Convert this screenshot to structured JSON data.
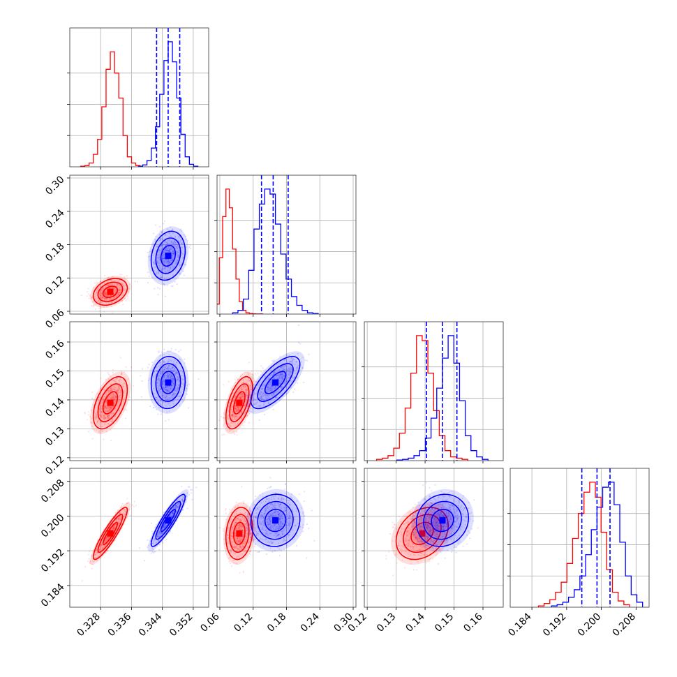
{
  "chart_data": {
    "type": "corner",
    "title": "",
    "grid": true,
    "parameters": [
      {
        "index": 0,
        "range": [
          0.32,
          0.356
        ],
        "ticks": [
          "0.328",
          "0.336",
          "0.344",
          "0.352"
        ],
        "tick_values": [
          0.328,
          0.336,
          0.344,
          0.352
        ]
      },
      {
        "index": 1,
        "range": [
          0.055,
          0.305
        ],
        "ticks": [
          "0.06",
          "0.12",
          "0.18",
          "0.24",
          "0.30"
        ],
        "tick_values": [
          0.06,
          0.12,
          0.18,
          0.24,
          0.3
        ]
      },
      {
        "index": 2,
        "range": [
          0.119,
          0.167
        ],
        "ticks": [
          "0.12",
          "0.13",
          "0.14",
          "0.15",
          "0.16"
        ],
        "tick_values": [
          0.12,
          0.13,
          0.14,
          0.15,
          0.16
        ]
      },
      {
        "index": 3,
        "range": [
          0.179,
          0.211
        ],
        "ticks": [
          "0.184",
          "0.192",
          "0.200",
          "0.208"
        ],
        "tick_values": [
          0.184,
          0.192,
          0.2,
          0.208
        ]
      }
    ],
    "series": [
      {
        "name": "red",
        "color": "#ff0000",
        "mean": [
          0.3305,
          0.095,
          0.139,
          0.196
        ],
        "sd": [
          0.0022,
          0.012,
          0.0045,
          0.003
        ],
        "corr": [
          [
            0,
            1,
            0.3
          ],
          [
            0,
            2,
            0.5
          ],
          [
            0,
            3,
            0.9
          ],
          [
            1,
            2,
            0.55
          ],
          [
            1,
            3,
            0.15
          ],
          [
            2,
            3,
            0.3
          ]
        ],
        "hist": [
          [
            0.5,
            1,
            3,
            10,
            22,
            48,
            78,
            92,
            75,
            55,
            25,
            8,
            3,
            1
          ],
          [
            8,
            45,
            78,
            100,
            85,
            52,
            28,
            10,
            3,
            1,
            0.5,
            0.2,
            0.1,
            0.1
          ],
          [
            1,
            2,
            4,
            10,
            22,
            42,
            70,
            100,
            96,
            70,
            40,
            20,
            8,
            3,
            2,
            1
          ],
          [
            1,
            3,
            6,
            12,
            20,
            35,
            55,
            75,
            92,
            100,
            88,
            60,
            30,
            12,
            5,
            2
          ]
        ]
      },
      {
        "name": "blue",
        "color": "#0000ff",
        "mean": [
          0.3455,
          0.16,
          0.146,
          0.199
        ],
        "sd": [
          0.0022,
          0.022,
          0.0045,
          0.003
        ],
        "corr": [
          [
            0,
            1,
            0.2
          ],
          [
            0,
            2,
            0.05
          ],
          [
            0,
            3,
            0.9
          ],
          [
            1,
            2,
            0.7
          ],
          [
            1,
            3,
            0.05
          ],
          [
            2,
            3,
            0.1
          ]
        ],
        "hist": [
          [
            0.5,
            1.5,
            5,
            15,
            32,
            58,
            85,
            100,
            84,
            55,
            26,
            8,
            2,
            0.5
          ],
          [
            1,
            3,
            12,
            35,
            68,
            88,
            100,
            96,
            72,
            48,
            28,
            14,
            7,
            3,
            1,
            0.5
          ],
          [
            0.5,
            1,
            2,
            4,
            8,
            18,
            34,
            58,
            82,
            100,
            78,
            48,
            20,
            8,
            3,
            1
          ],
          [
            1,
            2,
            4,
            8,
            14,
            25,
            42,
            62,
            80,
            96,
            100,
            82,
            52,
            25,
            10,
            4
          ]
        ],
        "quantiles": [
          [
            0.3425,
            0.3455,
            0.3485
          ],
          [
            0.135,
            0.156,
            0.183
          ],
          [
            0.1405,
            0.146,
            0.151
          ],
          [
            0.1955,
            0.199,
            0.202
          ]
        ]
      }
    ]
  }
}
